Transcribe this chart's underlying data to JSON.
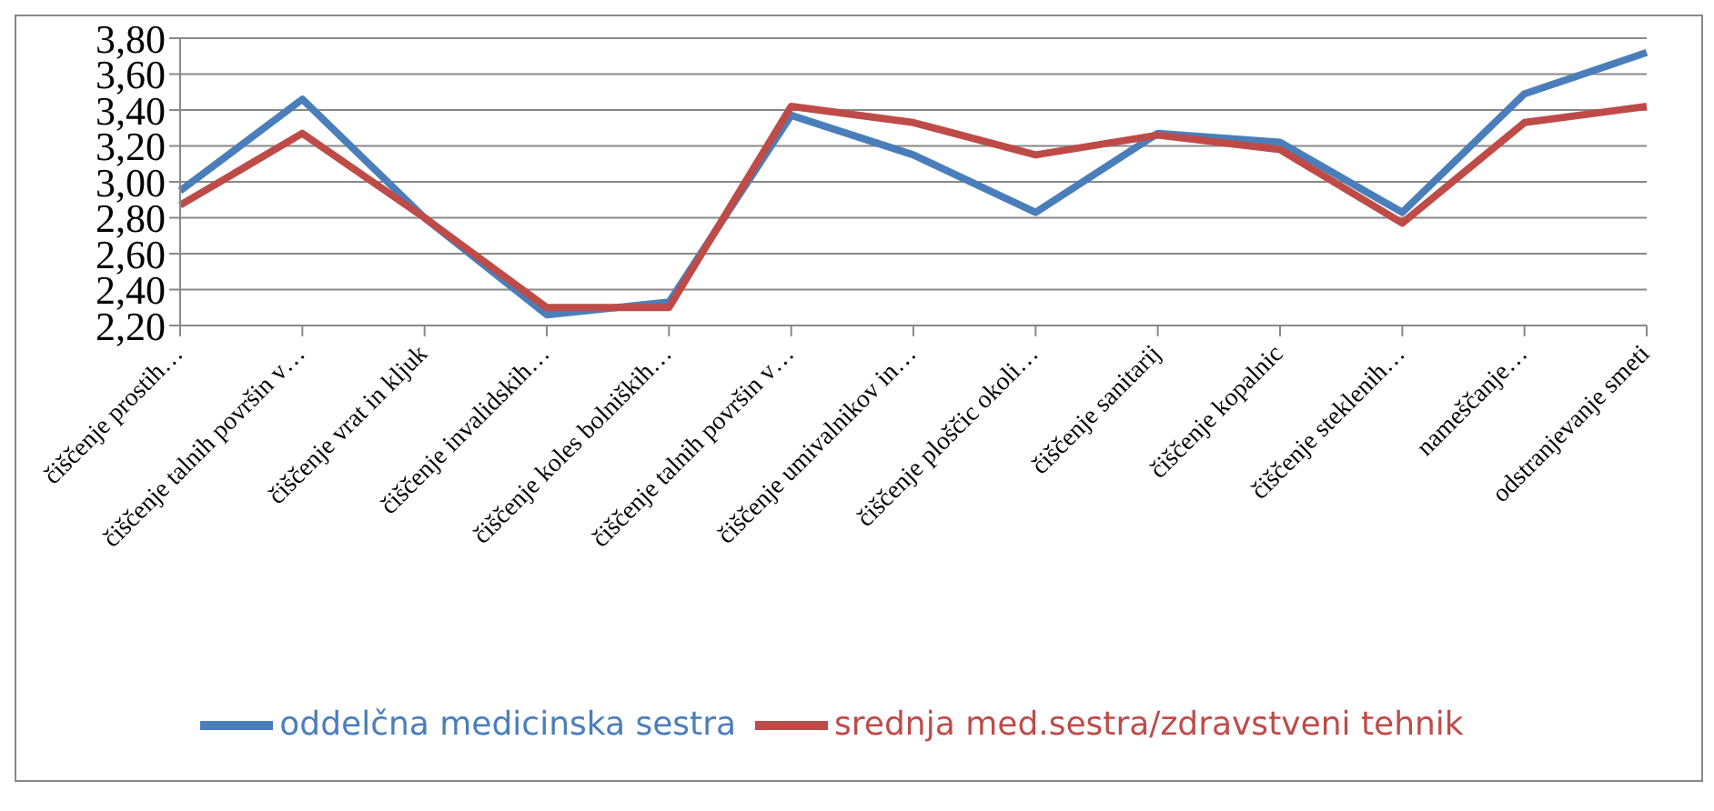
{
  "chart_data": {
    "type": "line",
    "categories": [
      "čiščenje prostih…",
      "čiščenje talnih površin v…",
      "čiščenje vrat in kljuk",
      "čiščenje invalidskih…",
      "čiščenje koles bolniških…",
      "čiščenje talnih površin v…",
      "čiščenje umivalnikov in…",
      "čiščenje ploščic okoli…",
      "čiščenje sanitarij",
      "čiščenje kopalnic",
      "čiščenje steklenih…",
      "nameščanje…",
      "odstranjevanje smeti"
    ],
    "series": [
      {
        "name": "oddelčna medicinska sestra",
        "color": "#4a7ebb",
        "values": [
          2.95,
          3.46,
          2.8,
          2.26,
          2.33,
          3.37,
          3.15,
          2.83,
          3.27,
          3.22,
          2.83,
          3.49,
          3.72
        ]
      },
      {
        "name": "srednja med.sestra/zdravstveni tehnik",
        "color": "#be4b48",
        "values": [
          2.87,
          3.27,
          2.8,
          2.3,
          2.3,
          3.42,
          3.33,
          3.15,
          3.26,
          3.18,
          2.77,
          3.33,
          3.42
        ]
      }
    ],
    "ylim": [
      2.2,
      3.8
    ],
    "yticks": [
      {
        "value": 2.2,
        "label": "2,20"
      },
      {
        "value": 2.4,
        "label": "2,40"
      },
      {
        "value": 2.6,
        "label": "2,60"
      },
      {
        "value": 2.8,
        "label": "2,80"
      },
      {
        "value": 3.0,
        "label": "3,00"
      },
      {
        "value": 3.2,
        "label": "3,20"
      },
      {
        "value": 3.4,
        "label": "3,40"
      },
      {
        "value": 3.6,
        "label": "3,60"
      },
      {
        "value": 3.8,
        "label": "3,80"
      }
    ],
    "grid": "y",
    "legend": "bottom",
    "marker": "none",
    "line_style": "solid"
  }
}
